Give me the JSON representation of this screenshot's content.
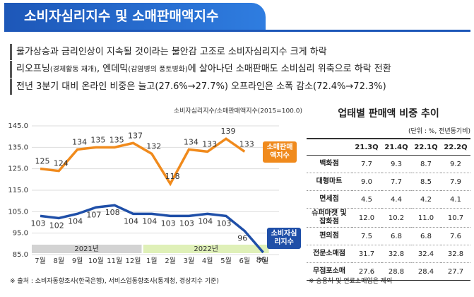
{
  "header": {
    "title": "소비자심리지수 및 소매판매액지수"
  },
  "bullets": [
    [
      "물가상승과 금리인상이 지속될 것이라는 불안감 고조로 소비자심리지수 크게 하락"
    ],
    [
      "리오프닝",
      "(경제활동 재개)",
      ", 엔데믹",
      "(감염병의 풍토병화)",
      "에 살아나던 소매판매도 소비심리 위축으로 하락 전환"
    ],
    [
      "전년 3분기 대비 온라인 비중은  늘고(27.6%→27.7%) 오프라인은 소폭 감소(72.4%→72.3%)"
    ]
  ],
  "chart_data": {
    "type": "line",
    "subtitle": "소비자심리지수/소매판매액지수(2015=100.0)",
    "categories": [
      "7월",
      "8월",
      "9월",
      "10월",
      "11월",
      "12월",
      "1월",
      "2월",
      "3월",
      "4월",
      "5월",
      "6월",
      "7월"
    ],
    "groups": [
      "2021년",
      "2022년"
    ],
    "series": [
      {
        "name": "소매판매액지수",
        "color": "#f08a1c",
        "values": [
          125,
          124,
          134,
          135,
          135,
          137,
          132,
          118,
          134,
          133,
          139,
          133,
          null
        ]
      },
      {
        "name": "소비자심리지수",
        "color": "#1f4fa8",
        "values": [
          103,
          102,
          104,
          107,
          108,
          104,
          104,
          103,
          103,
          104,
          103,
          96,
          86
        ]
      }
    ],
    "ylim": [
      85,
      145
    ],
    "yticks": [
      {
        "value": 85,
        "label": "85.0"
      },
      {
        "value": 95,
        "label": "95.0"
      },
      {
        "value": 105,
        "label": "105.0"
      },
      {
        "value": 115,
        "label": "115.0"
      },
      {
        "value": 125,
        "label": "125.0"
      },
      {
        "value": 135,
        "label": "135.0"
      },
      {
        "value": 145,
        "label": "145.0"
      }
    ],
    "grid": true,
    "source": "※ 출처 : 소비자동향조사(한국은행), 서비스업동향조사(통계청, 경상지수 기준)"
  },
  "table": {
    "title": "업태별 판매액 비중 추이",
    "unit": "(단위 : %, 전년동기비)",
    "columns": [
      "21.3Q",
      "21.4Q",
      "22.1Q",
      "22.2Q"
    ],
    "rows": [
      [
        "백화점",
        "7.7",
        "9.3",
        "8.7",
        "9.2"
      ],
      [
        "대형마트",
        "9.0",
        "7.7",
        "8.5",
        "7.9"
      ],
      [
        "면세점",
        "4.5",
        "4.4",
        "4.2",
        "4.1"
      ],
      [
        "슈퍼마켓 및 잡화점",
        "12.0",
        "10.2",
        "11.0",
        "10.7"
      ],
      [
        "편의점",
        "7.5",
        "6.8",
        "6.8",
        "7.6"
      ],
      [
        "전문소매점",
        "31.7",
        "32.8",
        "32.4",
        "32.8"
      ],
      [
        "무점포소매",
        "27.6",
        "28.8",
        "28.4",
        "27.7"
      ]
    ],
    "note": "※ 승용차 및 연료소매업은 제외"
  }
}
